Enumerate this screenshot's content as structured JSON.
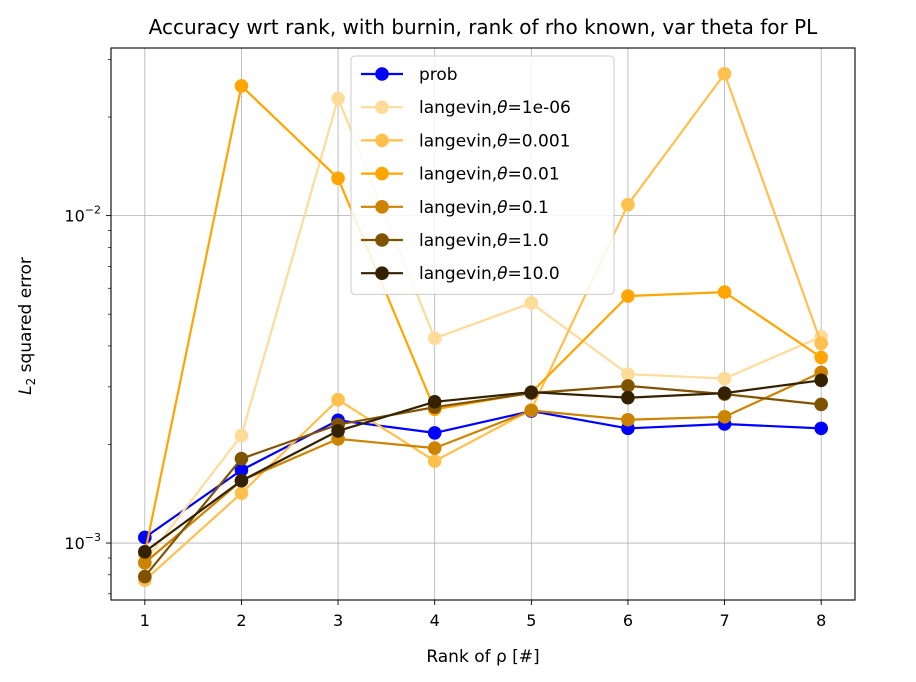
{
  "chart_data": {
    "type": "line",
    "title": "Accuracy wrt rank, with burnin, rank of rho known, var theta for PL",
    "xlabel": "Rank of ρ [#]",
    "ylabel": "L₂ squared error",
    "x": [
      1,
      2,
      3,
      4,
      5,
      6,
      7,
      8
    ],
    "y_scale": "log",
    "xlim": [
      0.65,
      8.35
    ],
    "ylim": [
      0.00067,
      0.0325
    ],
    "grid": true,
    "legend_position": "top-center",
    "x_ticks": [
      "1",
      "2",
      "3",
      "4",
      "5",
      "6",
      "7",
      "8"
    ],
    "y_ticks": [
      {
        "value": 0.001,
        "base": "10",
        "exponent": "−3"
      },
      {
        "value": 0.01,
        "base": "10",
        "exponent": "−2"
      }
    ],
    "series": [
      {
        "name": "prob",
        "color": "#0000ff",
        "values": [
          0.00104,
          0.00167,
          0.00237,
          0.00217,
          0.00253,
          0.00224,
          0.00231,
          0.00224
        ]
      },
      {
        "name": "langevin,θ=1e-06",
        "color": "#ffdb99",
        "values": [
          0.00088,
          0.00213,
          0.0228,
          0.00422,
          0.00541,
          0.00328,
          0.00318,
          0.00427
        ]
      },
      {
        "name": "langevin,θ=0.001",
        "color": "#ffc04d",
        "values": [
          0.00077,
          0.00142,
          0.00274,
          0.00178,
          0.00255,
          0.0108,
          0.0271,
          0.00407
        ]
      },
      {
        "name": "langevin,θ=0.01",
        "color": "#ffa500",
        "values": [
          0.00093,
          0.0249,
          0.013,
          0.00256,
          0.00288,
          0.00568,
          0.00584,
          0.00369
        ]
      },
      {
        "name": "langevin,θ=0.1",
        "color": "#cc8400",
        "values": [
          0.00087,
          0.00155,
          0.00208,
          0.00195,
          0.00254,
          0.00238,
          0.00243,
          0.00332
        ]
      },
      {
        "name": "langevin,θ=1.0",
        "color": "#805300",
        "values": [
          0.00079,
          0.00181,
          0.0023,
          0.0026,
          0.00287,
          0.00302,
          0.00285,
          0.00265
        ]
      },
      {
        "name": "langevin,θ=10.0",
        "color": "#332100",
        "values": [
          0.00094,
          0.00155,
          0.0022,
          0.0027,
          0.00289,
          0.00278,
          0.00287,
          0.00314
        ]
      }
    ]
  }
}
